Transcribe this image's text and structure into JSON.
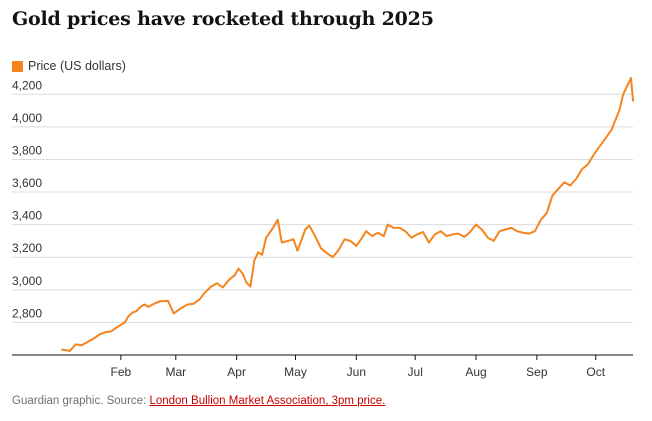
{
  "colors": {
    "line": "#f5841f",
    "grid": "#dcdcdc",
    "axis": "#121212",
    "text": "#333333",
    "source_link": "#c70000"
  },
  "chart_data": {
    "type": "line",
    "title": "Gold prices have rocketed through 2025",
    "legend_position": "top-left",
    "grid": true,
    "x_axis_labels": [
      "Feb",
      "Mar",
      "Apr",
      "May",
      "Jun",
      "Jul",
      "Aug",
      "Sep",
      "Oct"
    ],
    "y_ticks": [
      2800,
      3000,
      3200,
      3400,
      3600,
      3800,
      4000,
      4200
    ],
    "y_tick_labels": [
      "2,800",
      "3,000",
      "3,200",
      "3,400",
      "3,600",
      "3,800",
      "4,000",
      "4,200"
    ],
    "ylim": [
      2600,
      4300
    ],
    "xlim": [
      "2025-01-02",
      "2025-10-20"
    ],
    "x_ticks": [
      "2025-02-01",
      "2025-03-01",
      "2025-04-01",
      "2025-05-01",
      "2025-06-01",
      "2025-07-01",
      "2025-08-01",
      "2025-09-01",
      "2025-10-01"
    ],
    "series": [
      {
        "name": "Price (US dollars)",
        "points": [
          [
            "2025-01-02",
            2633
          ],
          [
            "2025-01-06",
            2625
          ],
          [
            "2025-01-09",
            2665
          ],
          [
            "2025-01-12",
            2660
          ],
          [
            "2025-01-15",
            2680
          ],
          [
            "2025-01-18",
            2700
          ],
          [
            "2025-01-21",
            2725
          ],
          [
            "2025-01-24",
            2740
          ],
          [
            "2025-01-27",
            2745
          ],
          [
            "2025-01-30",
            2770
          ],
          [
            "2025-02-03",
            2800
          ],
          [
            "2025-02-05",
            2840
          ],
          [
            "2025-02-07",
            2860
          ],
          [
            "2025-02-09",
            2870
          ],
          [
            "2025-02-11",
            2895
          ],
          [
            "2025-02-13",
            2910
          ],
          [
            "2025-02-15",
            2895
          ],
          [
            "2025-02-18",
            2915
          ],
          [
            "2025-02-21",
            2930
          ],
          [
            "2025-02-25",
            2932
          ],
          [
            "2025-02-28",
            2855
          ],
          [
            "2025-03-04",
            2890
          ],
          [
            "2025-03-07",
            2910
          ],
          [
            "2025-03-10",
            2915
          ],
          [
            "2025-03-13",
            2940
          ],
          [
            "2025-03-16",
            2985
          ],
          [
            "2025-03-19",
            3020
          ],
          [
            "2025-03-22",
            3040
          ],
          [
            "2025-03-25",
            3015
          ],
          [
            "2025-03-28",
            3060
          ],
          [
            "2025-03-31",
            3090
          ],
          [
            "2025-04-02",
            3130
          ],
          [
            "2025-04-04",
            3100
          ],
          [
            "2025-04-06",
            3045
          ],
          [
            "2025-04-08",
            3020
          ],
          [
            "2025-04-10",
            3180
          ],
          [
            "2025-04-12",
            3230
          ],
          [
            "2025-04-14",
            3215
          ],
          [
            "2025-04-16",
            3320
          ],
          [
            "2025-04-19",
            3370
          ],
          [
            "2025-04-22",
            3430
          ],
          [
            "2025-04-24",
            3290
          ],
          [
            "2025-04-27",
            3300
          ],
          [
            "2025-04-30",
            3310
          ],
          [
            "2025-05-02",
            3240
          ],
          [
            "2025-05-06",
            3370
          ],
          [
            "2025-05-08",
            3395
          ],
          [
            "2025-05-11",
            3330
          ],
          [
            "2025-05-14",
            3255
          ],
          [
            "2025-05-17",
            3225
          ],
          [
            "2025-05-20",
            3200
          ],
          [
            "2025-05-23",
            3245
          ],
          [
            "2025-05-26",
            3310
          ],
          [
            "2025-05-29",
            3300
          ],
          [
            "2025-06-01",
            3270
          ],
          [
            "2025-06-04",
            3320
          ],
          [
            "2025-06-06",
            3360
          ],
          [
            "2025-06-09",
            3330
          ],
          [
            "2025-06-12",
            3350
          ],
          [
            "2025-06-15",
            3330
          ],
          [
            "2025-06-17",
            3400
          ],
          [
            "2025-06-20",
            3380
          ],
          [
            "2025-06-23",
            3380
          ],
          [
            "2025-06-26",
            3360
          ],
          [
            "2025-06-29",
            3320
          ],
          [
            "2025-07-02",
            3340
          ],
          [
            "2025-07-05",
            3355
          ],
          [
            "2025-07-08",
            3290
          ],
          [
            "2025-07-11",
            3340
          ],
          [
            "2025-07-14",
            3360
          ],
          [
            "2025-07-17",
            3330
          ],
          [
            "2025-07-20",
            3340
          ],
          [
            "2025-07-23",
            3345
          ],
          [
            "2025-07-26",
            3325
          ],
          [
            "2025-07-29",
            3355
          ],
          [
            "2025-08-01",
            3400
          ],
          [
            "2025-08-04",
            3370
          ],
          [
            "2025-08-07",
            3320
          ],
          [
            "2025-08-10",
            3300
          ],
          [
            "2025-08-13",
            3360
          ],
          [
            "2025-08-16",
            3370
          ],
          [
            "2025-08-19",
            3380
          ],
          [
            "2025-08-22",
            3360
          ],
          [
            "2025-08-25",
            3350
          ],
          [
            "2025-08-28",
            3345
          ],
          [
            "2025-08-31",
            3360
          ],
          [
            "2025-09-03",
            3430
          ],
          [
            "2025-09-06",
            3470
          ],
          [
            "2025-09-09",
            3580
          ],
          [
            "2025-09-12",
            3620
          ],
          [
            "2025-09-15",
            3660
          ],
          [
            "2025-09-18",
            3640
          ],
          [
            "2025-09-21",
            3680
          ],
          [
            "2025-09-24",
            3740
          ],
          [
            "2025-09-27",
            3770
          ],
          [
            "2025-09-30",
            3830
          ],
          [
            "2025-10-03",
            3880
          ],
          [
            "2025-10-06",
            3930
          ],
          [
            "2025-10-09",
            3980
          ],
          [
            "2025-10-11",
            4040
          ],
          [
            "2025-10-13",
            4100
          ],
          [
            "2025-10-15",
            4200
          ],
          [
            "2025-10-17",
            4250
          ],
          [
            "2025-10-19",
            4300
          ],
          [
            "2025-10-20",
            4160
          ]
        ]
      }
    ]
  },
  "footer": {
    "source_prefix": "Guardian graphic. Source: ",
    "source_link": "London Bullion Market Association, 3pm price."
  }
}
